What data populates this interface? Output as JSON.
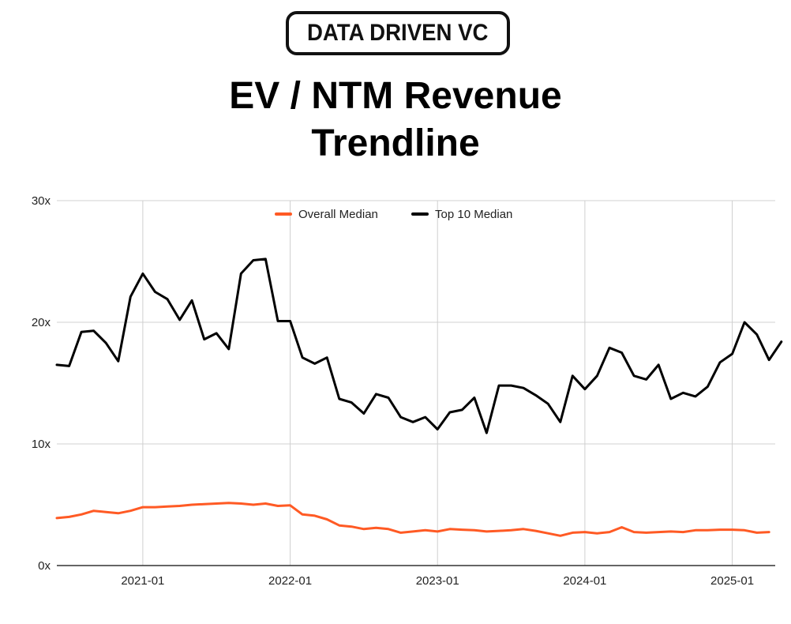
{
  "brand": {
    "logo_text": "DATA DRIVEN VC"
  },
  "header": {
    "title_line1": "EV / NTM Revenue",
    "title_line2": "Trendline"
  },
  "colors": {
    "overall": "#ff5a24",
    "top10": "#000000",
    "grid": "#d0d0d0"
  },
  "chart_data": {
    "type": "line",
    "title": "EV / NTM Revenue Trendline",
    "xlabel": "",
    "ylabel": "",
    "x_label_unit": "month index from 2020-06",
    "ylim": [
      0,
      30
    ],
    "xlim": [
      0,
      58.5
    ],
    "yticks": [
      0,
      10,
      20,
      30
    ],
    "ytick_labels": [
      "0x",
      "10x",
      "20x",
      "30x"
    ],
    "xticks": [
      7,
      19,
      31,
      43,
      55
    ],
    "xtick_labels": [
      "2021-01",
      "2022-01",
      "2023-01",
      "2024-01",
      "2025-01"
    ],
    "legend": {
      "position": "top-center",
      "entries": [
        "Overall Median",
        "Top 10 Median"
      ]
    },
    "grid": true,
    "series": [
      {
        "name": "Overall Median",
        "color": "#ff5a24",
        "values": [
          3.9,
          4.0,
          4.2,
          4.5,
          4.4,
          4.3,
          4.5,
          4.8,
          4.8,
          4.85,
          4.9,
          5.0,
          5.05,
          5.1,
          5.15,
          5.1,
          5.0,
          5.1,
          4.9,
          4.95,
          4.2,
          4.1,
          3.8,
          3.3,
          3.2,
          3.0,
          3.1,
          3.0,
          2.7,
          2.8,
          2.9,
          2.8,
          3.0,
          2.95,
          2.9,
          2.8,
          2.85,
          2.9,
          3.0,
          2.85,
          2.65,
          2.45,
          2.7,
          2.75,
          2.65,
          2.75,
          3.15,
          2.75,
          2.7,
          2.75,
          2.8,
          2.75,
          2.9,
          2.9,
          2.95,
          2.95,
          2.9,
          2.7,
          2.75
        ]
      },
      {
        "name": "Top 10 Median",
        "color": "#000000",
        "values": [
          16.5,
          16.4,
          19.2,
          19.3,
          18.3,
          16.8,
          22.1,
          24.0,
          22.5,
          21.9,
          20.2,
          21.8,
          18.6,
          19.1,
          17.8,
          24.0,
          25.1,
          25.2,
          20.1,
          20.1,
          17.1,
          16.6,
          17.1,
          13.7,
          13.4,
          12.5,
          14.1,
          13.8,
          12.2,
          11.8,
          12.2,
          11.2,
          12.6,
          12.8,
          13.8,
          10.9,
          14.8,
          14.8,
          14.6,
          14.0,
          13.3,
          11.8,
          15.6,
          14.5,
          15.6,
          17.9,
          17.5,
          15.6,
          15.3,
          16.5,
          13.7,
          14.2,
          13.9,
          14.7,
          16.7,
          17.4,
          20.0,
          19.0,
          16.9,
          18.4
        ]
      }
    ]
  }
}
